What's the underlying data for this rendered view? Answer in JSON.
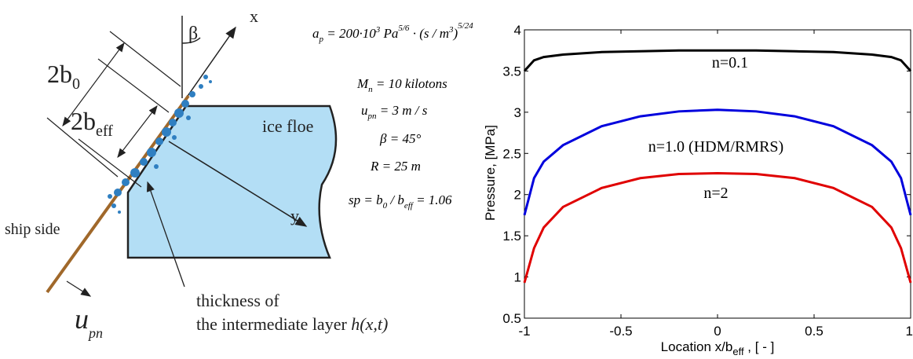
{
  "diagram": {
    "axis_x": "x",
    "axis_y": "y",
    "angle": "β",
    "width_outer": [
      "2b",
      "0"
    ],
    "width_eff": [
      "2b",
      "eff"
    ],
    "floe": "ice floe",
    "ship": "ship side",
    "velocity": [
      "u",
      "pn"
    ],
    "layer": [
      "thickness of",
      "the intermediate layer ",
      "h(x,t)"
    ],
    "formulas": [
      [
        "a",
        "p",
        " = 200·10",
        "3",
        " Pa",
        "5/6",
        " · (s / m",
        "3",
        ")",
        "5/24"
      ],
      [
        "M",
        "n",
        " = 10 kilotons"
      ],
      [
        "u",
        "pn",
        " = 3 m / s"
      ],
      [
        "β = 45°"
      ],
      [
        "R = 25 m"
      ],
      [
        "sp = b",
        "0",
        " / b",
        "eff",
        " = 1.06"
      ]
    ]
  },
  "chart_data": {
    "type": "line",
    "xlabel": [
      "Location x/b",
      "eff",
      " , [ - ]"
    ],
    "ylabel": "Pressure, [MPa]",
    "x": [
      -1,
      -0.95,
      -0.9,
      -0.8,
      -0.6,
      -0.4,
      -0.2,
      0,
      0.2,
      0.4,
      0.6,
      0.8,
      0.9,
      0.95,
      1
    ],
    "series": [
      {
        "name": "n=0.1",
        "color": "#000000",
        "values": [
          3.5,
          3.63,
          3.67,
          3.7,
          3.73,
          3.74,
          3.75,
          3.75,
          3.75,
          3.74,
          3.73,
          3.7,
          3.67,
          3.63,
          3.5
        ]
      },
      {
        "name": "n=1.0 (HDM/RMRS)",
        "color": "#0000dd",
        "values": [
          1.75,
          2.2,
          2.4,
          2.6,
          2.83,
          2.95,
          3.01,
          3.03,
          3.01,
          2.95,
          2.83,
          2.6,
          2.4,
          2.2,
          1.75
        ]
      },
      {
        "name": "n=2",
        "color": "#e00000",
        "values": [
          0.93,
          1.35,
          1.6,
          1.85,
          2.08,
          2.2,
          2.25,
          2.26,
          2.25,
          2.2,
          2.08,
          1.85,
          1.6,
          1.35,
          0.93
        ]
      }
    ],
    "xlim": [
      -1,
      1
    ],
    "xticks": [
      -1,
      -0.5,
      0,
      0.5,
      1
    ],
    "ylim": [
      0.5,
      4
    ],
    "yticks": [
      0.5,
      1,
      1.5,
      2,
      2.5,
      3,
      3.5,
      4
    ],
    "grid": false
  }
}
